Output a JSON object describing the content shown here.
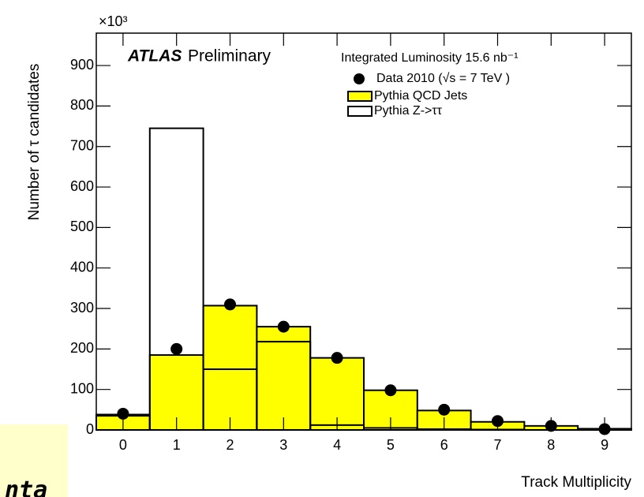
{
  "chart_data": {
    "type": "histogram",
    "atlas_label": "ATLAS",
    "atlas_status": "Preliminary",
    "legend_title": "Integrated Luminosity 15.6 nb⁻¹",
    "x_label": "Track Multiplicity",
    "y_label": "Number of τ candidates",
    "y_multiplier": "×10³",
    "bins": [
      -0.5,
      0.5,
      1.5,
      2.5,
      3.5,
      4.5,
      5.5,
      6.5,
      7.5,
      8.5,
      9.5
    ],
    "x": [
      0,
      1,
      2,
      3,
      4,
      5,
      6,
      7,
      8,
      9
    ],
    "series": [
      {
        "name": "Pythia QCD Jets",
        "style": "filled",
        "color": "#ffff00",
        "values": [
          35,
          185,
          307,
          255,
          178,
          98,
          48,
          20,
          10,
          3
        ]
      },
      {
        "name": "Pythia Z->ττ",
        "style": "outline",
        "color": "#000000",
        "values": [
          38,
          745,
          150,
          218,
          12,
          5,
          2,
          1,
          0,
          0
        ]
      },
      {
        "name": "Data 2010 (√s = 7 TeV )",
        "style": "points",
        "color": "#000000",
        "values": [
          40,
          200,
          310,
          255,
          178,
          98,
          50,
          22,
          10,
          2
        ]
      }
    ],
    "xlim": [
      -0.5,
      9.5
    ],
    "xticks": [
      0,
      1,
      2,
      3,
      4,
      5,
      6,
      7,
      8,
      9
    ],
    "ylim": [
      0,
      980
    ],
    "yticks": [
      0,
      100,
      200,
      300,
      400,
      500,
      600,
      700,
      800,
      900
    ]
  },
  "slide_fragment": {
    "text": "nta"
  }
}
